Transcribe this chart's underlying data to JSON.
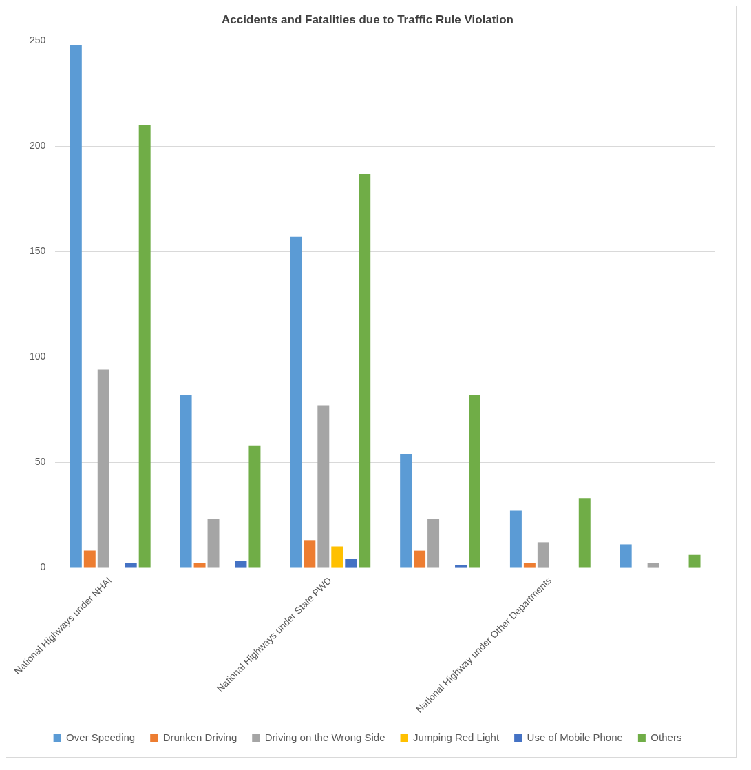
{
  "chart_data": {
    "type": "bar",
    "title": "Accidents and Fatalities due to Traffic Rule Violation",
    "categories": [
      "National Highways under NHAI",
      null,
      "National Highways under State PWD",
      null,
      "National Highway under Other Departments",
      null
    ],
    "series": [
      {
        "name": "Over Speeding",
        "color": "#5b9bd5",
        "values": [
          248,
          82,
          157,
          54,
          27,
          11
        ]
      },
      {
        "name": "Drunken Driving",
        "color": "#ed7d31",
        "values": [
          8,
          2,
          13,
          8,
          2,
          0
        ]
      },
      {
        "name": "Driving on the Wrong Side",
        "color": "#a5a5a5",
        "values": [
          94,
          23,
          77,
          23,
          12,
          2
        ]
      },
      {
        "name": "Jumping Red Light",
        "color": "#ffc000",
        "values": [
          0,
          0,
          10,
          0,
          0,
          0
        ]
      },
      {
        "name": "Use of Mobile Phone",
        "color": "#4472c4",
        "values": [
          2,
          3,
          4,
          1,
          0,
          0
        ]
      },
      {
        "name": "Others",
        "color": "#70ad47",
        "values": [
          210,
          58,
          187,
          82,
          33,
          6
        ]
      }
    ],
    "ylim": [
      0,
      250
    ],
    "yticks": [
      0,
      50,
      100,
      150,
      200,
      250
    ],
    "grid": "y",
    "legend": "bottom"
  }
}
